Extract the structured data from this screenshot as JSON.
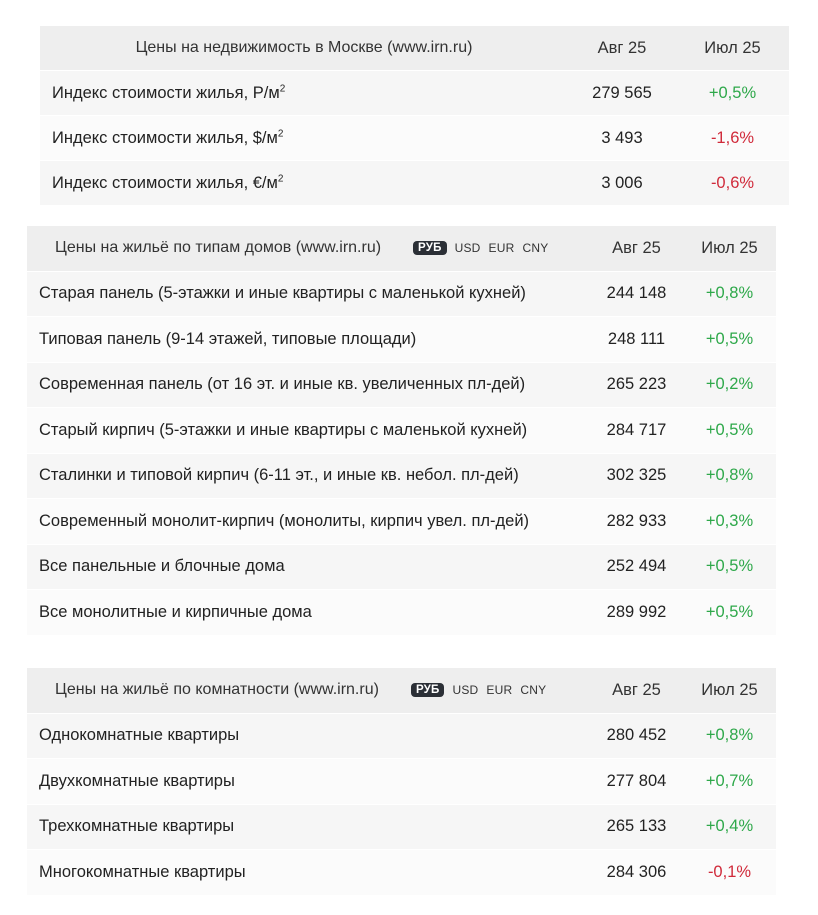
{
  "table1": {
    "title": "Цены на недвижимость в Москве (www.irn.ru)",
    "col_aug": "Авг 25",
    "col_jul": "Июл 25",
    "rows": [
      {
        "name": "Индекс стоимости жилья, Р/м",
        "sup": "2",
        "aug": "279 565",
        "jul": "+0,5%",
        "sign": "pos"
      },
      {
        "name": "Индекс стоимости жилья, $/м",
        "sup": "2",
        "aug": "3 493",
        "jul": "-1,6%",
        "sign": "neg"
      },
      {
        "name": "Индекс стоимости жилья, €/м",
        "sup": "2",
        "aug": "3 006",
        "jul": "-0,6%",
        "sign": "neg"
      }
    ]
  },
  "table2": {
    "title": "Цены на жильё по типам домов (www.irn.ru)",
    "currencies": [
      "РУБ",
      "USD",
      "EUR",
      "CNY"
    ],
    "active_currency": "РУБ",
    "col_aug": "Авг 25",
    "col_jul": "Июл 25",
    "rows": [
      {
        "name": "Старая панель (5-этажки и иные квартиры с маленькой кухней)",
        "aug": "244 148",
        "jul": "+0,8%",
        "sign": "pos"
      },
      {
        "name": "Типовая панель (9-14 этажей, типовые площади)",
        "aug": "248 111",
        "jul": "+0,5%",
        "sign": "pos"
      },
      {
        "name": "Современная панель (от 16 эт. и иные кв. увеличенных пл-дей)",
        "aug": "265 223",
        "jul": "+0,2%",
        "sign": "pos"
      },
      {
        "name": "Старый кирпич (5-этажки и иные квартиры с маленькой кухней)",
        "aug": "284 717",
        "jul": "+0,5%",
        "sign": "pos"
      },
      {
        "name": "Сталинки и типовой кирпич (6-11 эт., и иные кв. небол. пл-дей)",
        "aug": "302 325",
        "jul": "+0,8%",
        "sign": "pos"
      },
      {
        "name": "Современный монолит-кирпич (монолиты, кирпич увел. пл-дей)",
        "aug": "282 933",
        "jul": "+0,3%",
        "sign": "pos"
      },
      {
        "name": "Все панельные и блочные дома",
        "aug": "252 494",
        "jul": "+0,5%",
        "sign": "pos"
      },
      {
        "name": "Все монолитные и кирпичные дома",
        "aug": "289 992",
        "jul": "+0,5%",
        "sign": "pos"
      }
    ]
  },
  "table3": {
    "title": "Цены на жильё по комнатности (www.irn.ru)",
    "currencies": [
      "РУБ",
      "USD",
      "EUR",
      "CNY"
    ],
    "active_currency": "РУБ",
    "col_aug": "Авг 25",
    "col_jul": "Июл 25",
    "rows": [
      {
        "name": "Однокомнатные квартиры",
        "aug": "280 452",
        "jul": "+0,8%",
        "sign": "pos"
      },
      {
        "name": "Двухкомнатные квартиры",
        "aug": "277 804",
        "jul": "+0,7%",
        "sign": "pos"
      },
      {
        "name": "Трехкомнатные квартиры",
        "aug": "265 133",
        "jul": "+0,4%",
        "sign": "pos"
      },
      {
        "name": "Многокомнатные квартиры",
        "aug": "284 306",
        "jul": "-0,1%",
        "sign": "neg"
      }
    ]
  },
  "colors": {
    "positive": "#2ea84a",
    "negative": "#d02a3a",
    "active_currency_bg": "#2b2f36"
  }
}
